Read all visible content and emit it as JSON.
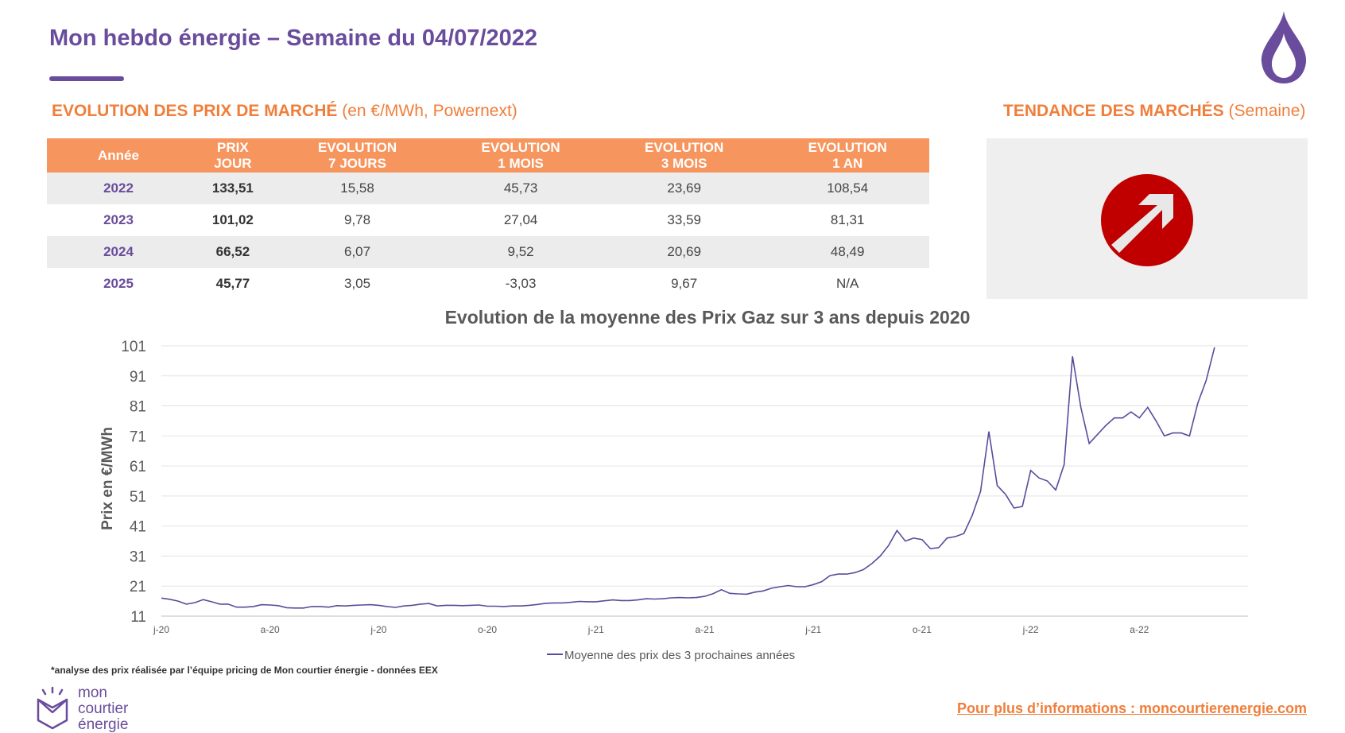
{
  "header": {
    "title": "Mon hebdo énergie – Semaine du 04/07/2022"
  },
  "market_prices": {
    "title_bold": "EVOLUTION DES PRIX DE MARCHÉ",
    "title_light": "(en €/MWh, Powernext)",
    "columns": [
      [
        "Année",
        ""
      ],
      [
        "PRIX",
        "JOUR"
      ],
      [
        "EVOLUTION",
        "7 JOURS"
      ],
      [
        "EVOLUTION",
        "1 MOIS"
      ],
      [
        "EVOLUTION",
        "3 MOIS"
      ],
      [
        "EVOLUTION",
        "1 AN"
      ]
    ],
    "rows": [
      [
        "2022",
        "133,51",
        "15,58",
        "45,73",
        "23,69",
        "108,54"
      ],
      [
        "2023",
        "101,02",
        "9,78",
        "27,04",
        "33,59",
        "81,31"
      ],
      [
        "2024",
        "66,52",
        "6,07",
        "9,52",
        "20,69",
        "48,49"
      ],
      [
        "2025",
        "45,77",
        "3,05",
        "-3,03",
        "9,67",
        "N/A"
      ]
    ]
  },
  "trend": {
    "title_bold": "TENDANCE DES MARCHÉS",
    "title_light": "(Semaine)",
    "direction_icon": "arrow-up-right-icon",
    "color": "#c00000"
  },
  "chart_data": {
    "type": "line",
    "title": "Evolution de la moyenne des Prix Gaz sur 3 ans depuis 2020",
    "xlabel": "",
    "ylabel": "Prix en €/MWh",
    "ylim": [
      11,
      101
    ],
    "yticks": [
      "11",
      "21",
      "31",
      "41",
      "51",
      "61",
      "71",
      "81",
      "91",
      "101"
    ],
    "xticks": [
      "j-20",
      "a-20",
      "j-20",
      "o-20",
      "j-21",
      "a-21",
      "j-21",
      "o-21",
      "j-22",
      "a-22"
    ],
    "x_range_weeks": [
      0,
      130
    ],
    "xtick_weeks": [
      0,
      13,
      26,
      39,
      52,
      65,
      78,
      91,
      104,
      117
    ],
    "legend": "bottom",
    "grid": true,
    "series": [
      {
        "name": "Moyenne des prix des 3 prochaines années",
        "color": "#5b4b9b",
        "points": [
          [
            0,
            17.0
          ],
          [
            1,
            16.6
          ],
          [
            2,
            16.0
          ],
          [
            3,
            15.0
          ],
          [
            4,
            15.5
          ],
          [
            5,
            16.5
          ],
          [
            6,
            15.8
          ],
          [
            7,
            15.0
          ],
          [
            8,
            15.0
          ],
          [
            9,
            14.0
          ],
          [
            10,
            14.0
          ],
          [
            11,
            14.2
          ],
          [
            12,
            14.8
          ],
          [
            13,
            14.7
          ],
          [
            14,
            14.5
          ],
          [
            15,
            13.8
          ],
          [
            16,
            13.7
          ],
          [
            17,
            13.7
          ],
          [
            18,
            14.2
          ],
          [
            19,
            14.2
          ],
          [
            20,
            14.0
          ],
          [
            21,
            14.5
          ],
          [
            22,
            14.4
          ],
          [
            23,
            14.6
          ],
          [
            24,
            14.7
          ],
          [
            25,
            14.8
          ],
          [
            26,
            14.6
          ],
          [
            27,
            14.2
          ],
          [
            28,
            13.9
          ],
          [
            29,
            14.4
          ],
          [
            30,
            14.6
          ],
          [
            31,
            15.0
          ],
          [
            32,
            15.2
          ],
          [
            33,
            14.4
          ],
          [
            34,
            14.6
          ],
          [
            35,
            14.6
          ],
          [
            36,
            14.5
          ],
          [
            37,
            14.6
          ],
          [
            38,
            14.7
          ],
          [
            39,
            14.3
          ],
          [
            40,
            14.3
          ],
          [
            41,
            14.2
          ],
          [
            42,
            14.4
          ],
          [
            43,
            14.4
          ],
          [
            44,
            14.6
          ],
          [
            45,
            14.9
          ],
          [
            46,
            15.3
          ],
          [
            47,
            15.4
          ],
          [
            48,
            15.4
          ],
          [
            49,
            15.6
          ],
          [
            50,
            15.9
          ],
          [
            51,
            15.8
          ],
          [
            52,
            15.8
          ],
          [
            53,
            16.1
          ],
          [
            54,
            16.4
          ],
          [
            55,
            16.2
          ],
          [
            56,
            16.2
          ],
          [
            57,
            16.4
          ],
          [
            58,
            16.8
          ],
          [
            59,
            16.7
          ],
          [
            60,
            16.8
          ],
          [
            61,
            17.1
          ],
          [
            62,
            17.2
          ],
          [
            63,
            17.1
          ],
          [
            64,
            17.2
          ],
          [
            65,
            17.6
          ],
          [
            66,
            18.5
          ],
          [
            67,
            19.8
          ],
          [
            68,
            18.6
          ],
          [
            69,
            18.4
          ],
          [
            70,
            18.3
          ],
          [
            71,
            19.0
          ],
          [
            72,
            19.4
          ],
          [
            73,
            20.3
          ],
          [
            74,
            20.8
          ],
          [
            75,
            21.2
          ],
          [
            76,
            20.8
          ],
          [
            77,
            20.8
          ],
          [
            78,
            21.5
          ],
          [
            79,
            22.5
          ],
          [
            80,
            24.5
          ],
          [
            81,
            25.0
          ],
          [
            82,
            25.0
          ],
          [
            83,
            25.5
          ],
          [
            84,
            26.5
          ],
          [
            85,
            28.5
          ],
          [
            86,
            31.0
          ],
          [
            87,
            34.5
          ],
          [
            88,
            39.5
          ],
          [
            89,
            36.0
          ],
          [
            90,
            37.0
          ],
          [
            91,
            36.5
          ],
          [
            92,
            33.5
          ],
          [
            93,
            33.8
          ],
          [
            94,
            37.0
          ],
          [
            95,
            37.5
          ],
          [
            96,
            38.5
          ],
          [
            97,
            44.5
          ],
          [
            98,
            52.5
          ],
          [
            99,
            72.5
          ],
          [
            100,
            54.5
          ],
          [
            101,
            51.5
          ],
          [
            102,
            47.0
          ],
          [
            103,
            47.5
          ],
          [
            104,
            59.5
          ],
          [
            105,
            57.0
          ],
          [
            106,
            56.0
          ],
          [
            107,
            53.0
          ],
          [
            108,
            61.5
          ],
          [
            109,
            97.5
          ],
          [
            110,
            80.5
          ],
          [
            111,
            68.5
          ],
          [
            112,
            71.5
          ],
          [
            113,
            74.5
          ],
          [
            114,
            77.0
          ],
          [
            115,
            77.0
          ],
          [
            116,
            79.0
          ],
          [
            117,
            77.0
          ],
          [
            118,
            80.5
          ],
          [
            119,
            76.0
          ],
          [
            120,
            71.0
          ],
          [
            121,
            72.0
          ],
          [
            122,
            72.0
          ],
          [
            123,
            71.0
          ],
          [
            124,
            82.0
          ],
          [
            125,
            89.5
          ],
          [
            126,
            100.5
          ]
        ]
      }
    ]
  },
  "footer": {
    "footnote": "*analyse des prix réalisée par l’équipe pricing de Mon courtier énergie -  données EEX",
    "logo_lines": [
      "mon",
      "courtier",
      "énergie"
    ],
    "link_text": "Pour plus d’informations : moncourtierenergie.com"
  },
  "colors": {
    "brand_purple": "#6a4c9c",
    "accent_orange": "#f07e3a",
    "table_header": "#f7955e"
  }
}
